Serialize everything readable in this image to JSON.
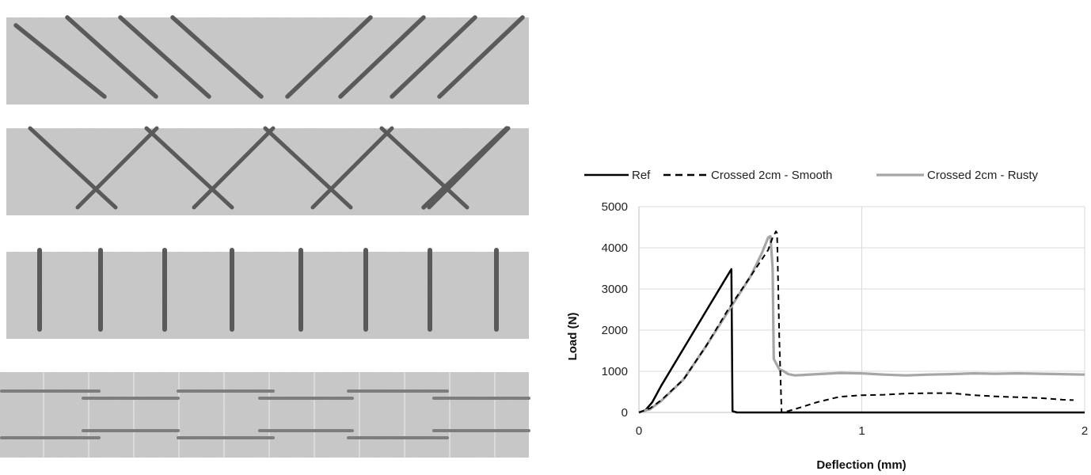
{
  "panels": [
    {
      "pattern": "inclined-aligned"
    },
    {
      "pattern": "crossed"
    },
    {
      "pattern": "vertical"
    },
    {
      "pattern": "horizontal-staggered"
    }
  ],
  "colors": {
    "rebar_dark": "#5a5a5a",
    "rebar_light": "#7d7d7d",
    "concrete": "#c9c9c9",
    "ref": "#000000",
    "smooth": "#000000",
    "rusty": "#a6a6a6",
    "grid": "#d9d9d9"
  },
  "chart_data": {
    "type": "line",
    "xlabel": "Deflection (mm)",
    "ylabel": "Load (N)",
    "xlim": [
      0,
      2
    ],
    "ylim": [
      0,
      5000
    ],
    "xticks": [
      "0",
      "1",
      "2"
    ],
    "yticks": [
      "0",
      "1000",
      "2000",
      "3000",
      "4000",
      "5000"
    ],
    "grid": "vertical and horizontal gridlines",
    "legend_position": "top",
    "series": [
      {
        "name": "Ref",
        "style": "solid",
        "color": "#000000",
        "points": [
          [
            0,
            0
          ],
          [
            0.03,
            60
          ],
          [
            0.06,
            250
          ],
          [
            0.1,
            650
          ],
          [
            0.2,
            1550
          ],
          [
            0.3,
            2450
          ],
          [
            0.4,
            3350
          ],
          [
            0.415,
            3480
          ],
          [
            0.42,
            30
          ],
          [
            0.44,
            0
          ],
          [
            2,
            0
          ]
        ]
      },
      {
        "name": "Crossed 2cm - Smooth",
        "style": "dashed",
        "color": "#000000",
        "points": [
          [
            0,
            0
          ],
          [
            0.05,
            100
          ],
          [
            0.1,
            300
          ],
          [
            0.2,
            800
          ],
          [
            0.3,
            1600
          ],
          [
            0.4,
            2500
          ],
          [
            0.5,
            3300
          ],
          [
            0.58,
            3950
          ],
          [
            0.6,
            4250
          ],
          [
            0.615,
            4400
          ],
          [
            0.62,
            4350
          ],
          [
            0.63,
            1800
          ],
          [
            0.64,
            0
          ],
          [
            0.66,
            20
          ],
          [
            0.7,
            80
          ],
          [
            0.8,
            250
          ],
          [
            0.9,
            380
          ],
          [
            1.0,
            420
          ],
          [
            1.1,
            430
          ],
          [
            1.2,
            460
          ],
          [
            1.3,
            470
          ],
          [
            1.4,
            470
          ],
          [
            1.5,
            420
          ],
          [
            1.6,
            390
          ],
          [
            1.7,
            370
          ],
          [
            1.8,
            350
          ],
          [
            1.9,
            310
          ],
          [
            1.95,
            300
          ]
        ]
      },
      {
        "name": "Crossed 2cm - Rusty",
        "style": "solid",
        "color": "#a6a6a6",
        "points": [
          [
            0,
            0
          ],
          [
            0.05,
            80
          ],
          [
            0.1,
            280
          ],
          [
            0.2,
            800
          ],
          [
            0.3,
            1600
          ],
          [
            0.4,
            2450
          ],
          [
            0.5,
            3300
          ],
          [
            0.55,
            3850
          ],
          [
            0.58,
            4250
          ],
          [
            0.59,
            4280
          ],
          [
            0.6,
            3500
          ],
          [
            0.605,
            1300
          ],
          [
            0.63,
            1050
          ],
          [
            0.65,
            1000
          ],
          [
            0.67,
            930
          ],
          [
            0.7,
            900
          ],
          [
            0.8,
            930
          ],
          [
            0.9,
            960
          ],
          [
            1.0,
            950
          ],
          [
            1.1,
            920
          ],
          [
            1.2,
            900
          ],
          [
            1.3,
            920
          ],
          [
            1.4,
            930
          ],
          [
            1.5,
            950
          ],
          [
            1.6,
            940
          ],
          [
            1.7,
            950
          ],
          [
            1.8,
            940
          ],
          [
            1.9,
            930
          ],
          [
            2.0,
            920
          ]
        ]
      }
    ]
  }
}
